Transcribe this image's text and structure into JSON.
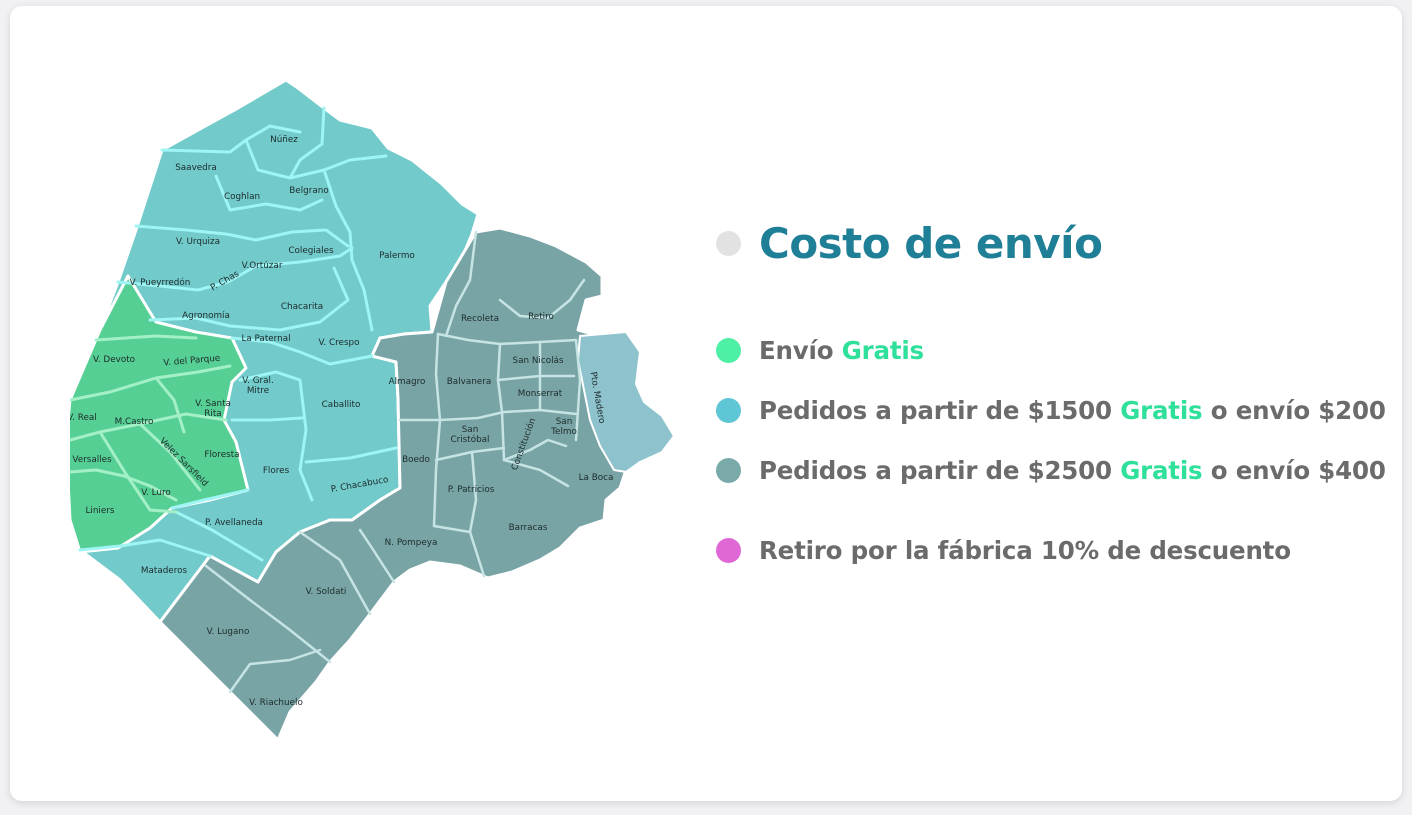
{
  "title": "Costo de envío",
  "colors": {
    "title_dot": "#e2e2e2",
    "free": "#4ef0a6",
    "zone1500": "#5ec6d4",
    "zone2500": "#79aaa9",
    "pickup": "#e067d6",
    "gratis_text": "#2fe09a",
    "map_free": "#56cf94",
    "map_zone1500": "#72cacb",
    "map_zone2500": "#79a4a6",
    "map_extra": "#8ec3ce"
  },
  "legend": [
    {
      "color_key": "free",
      "parts": [
        {
          "text": "Envío ",
          "hl": false
        },
        {
          "text": "Gratis",
          "hl": true
        }
      ]
    },
    {
      "color_key": "zone1500",
      "parts": [
        {
          "text": "Pedidos a partir de $1500  ",
          "hl": false
        },
        {
          "text": "Gratis",
          "hl": true
        },
        {
          "text": " o envío $200",
          "hl": false
        }
      ]
    },
    {
      "color_key": "zone2500",
      "parts": [
        {
          "text": "Pedidos a partir de $2500  ",
          "hl": false
        },
        {
          "text": "Gratis",
          "hl": true
        },
        {
          "text": " o envío $400",
          "hl": false
        }
      ]
    },
    {
      "color_key": "pickup",
      "parts": [
        {
          "text": "Retiro por la fábrica 10% de descuento",
          "hl": false
        }
      ]
    }
  ],
  "map": {
    "neighborhoods": [
      {
        "name": "Núñez",
        "zone": "zone1500"
      },
      {
        "name": "Saavedra",
        "zone": "zone1500"
      },
      {
        "name": "Coghlan",
        "zone": "zone1500"
      },
      {
        "name": "Belgrano",
        "zone": "zone1500"
      },
      {
        "name": "V. Urquiza",
        "zone": "zone1500"
      },
      {
        "name": "Colegiales",
        "zone": "zone1500"
      },
      {
        "name": "Palermo",
        "zone": "zone1500"
      },
      {
        "name": "V.Ortúzar",
        "zone": "zone1500"
      },
      {
        "name": "P. Chas",
        "zone": "zone1500"
      },
      {
        "name": "V. Pueyrredón",
        "zone": "zone1500"
      },
      {
        "name": "Chacarita",
        "zone": "zone1500"
      },
      {
        "name": "Agronomía",
        "zone": "zone1500"
      },
      {
        "name": "La Paternal",
        "zone": "zone1500"
      },
      {
        "name": "V. Crespo",
        "zone": "zone1500"
      },
      {
        "name": "V. Devoto",
        "zone": "free"
      },
      {
        "name": "V. del Parque",
        "zone": "free"
      },
      {
        "name": "V. Gral. Mitre",
        "zone": "zone1500"
      },
      {
        "name": "V. Real",
        "zone": "free"
      },
      {
        "name": "M.Castro",
        "zone": "free"
      },
      {
        "name": "V. Santa Rita",
        "zone": "free"
      },
      {
        "name": "Caballito",
        "zone": "zone1500"
      },
      {
        "name": "Versalles",
        "zone": "free"
      },
      {
        "name": "Velez Sarsfield",
        "zone": "free"
      },
      {
        "name": "Floresta",
        "zone": "free"
      },
      {
        "name": "Flores",
        "zone": "zone1500"
      },
      {
        "name": "P. Chacabuco",
        "zone": "zone1500"
      },
      {
        "name": "Liniers",
        "zone": "free"
      },
      {
        "name": "V. Luro",
        "zone": "free"
      },
      {
        "name": "P. Avellaneda",
        "zone": "zone1500"
      },
      {
        "name": "Mataderos",
        "zone": "zone1500"
      },
      {
        "name": "Recoleta",
        "zone": "zone2500"
      },
      {
        "name": "Retiro",
        "zone": "zone2500"
      },
      {
        "name": "San Nicolás",
        "zone": "zone2500"
      },
      {
        "name": "Almagro",
        "zone": "zone2500"
      },
      {
        "name": "Balvanera",
        "zone": "zone2500"
      },
      {
        "name": "Monserrat",
        "zone": "zone2500"
      },
      {
        "name": "Pto. Madero",
        "zone": "zone2500"
      },
      {
        "name": "San Cristóbal",
        "zone": "zone2500"
      },
      {
        "name": "San Telmo",
        "zone": "zone2500"
      },
      {
        "name": "Constitución",
        "zone": "zone2500"
      },
      {
        "name": "Boedo",
        "zone": "zone2500"
      },
      {
        "name": "La Boca",
        "zone": "zone2500"
      },
      {
        "name": "P. Patricios",
        "zone": "zone2500"
      },
      {
        "name": "Barracas",
        "zone": "zone2500"
      },
      {
        "name": "N. Pompeya",
        "zone": "zone2500"
      },
      {
        "name": "V. Soldati",
        "zone": "zone2500"
      },
      {
        "name": "V. Lugano",
        "zone": "zone2500"
      },
      {
        "name": "V. Riachuelo",
        "zone": "zone2500"
      }
    ]
  }
}
